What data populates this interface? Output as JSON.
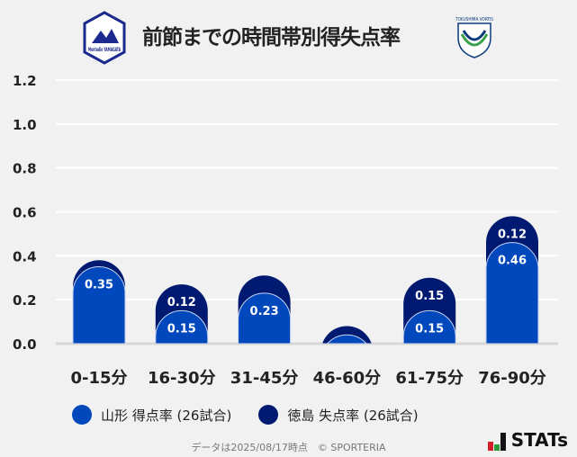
{
  "header": {
    "title": "前節までの時間帯別得失点率",
    "left_logo_text": "Montedio YAMAGATA",
    "right_logo_text": "TOKUSHIMA VORTIS"
  },
  "chart_data": {
    "type": "bar",
    "stacked": true,
    "title": "前節までの時間帯別得失点率",
    "categories": [
      "0-15分",
      "16-30分",
      "31-45分",
      "46-60分",
      "61-75分",
      "76-90分"
    ],
    "series": [
      {
        "name": "山形 得点率 (26試合)",
        "color": "#0048bb",
        "values": [
          0.35,
          0.15,
          0.23,
          0.04,
          0.15,
          0.46
        ],
        "labels": [
          "0.35",
          "0.15",
          "0.23",
          "",
          "0.15",
          "0.46"
        ]
      },
      {
        "name": "徳島 失点率 (26試合)",
        "color": "#001a72",
        "values": [
          0.03,
          0.12,
          0.08,
          0.04,
          0.15,
          0.12
        ],
        "labels": [
          "",
          "0.12",
          "",
          "",
          "0.15",
          "0.12"
        ]
      }
    ],
    "ylim": [
      0,
      1.2
    ],
    "yticks": [
      "0.0",
      "0.2",
      "0.4",
      "0.6",
      "0.8",
      "1.0",
      "1.2"
    ],
    "grid": true,
    "legend": "bottom"
  },
  "footer": {
    "note": "データは2025/08/17時点　© SPORTERIA",
    "brand": "STATs"
  }
}
